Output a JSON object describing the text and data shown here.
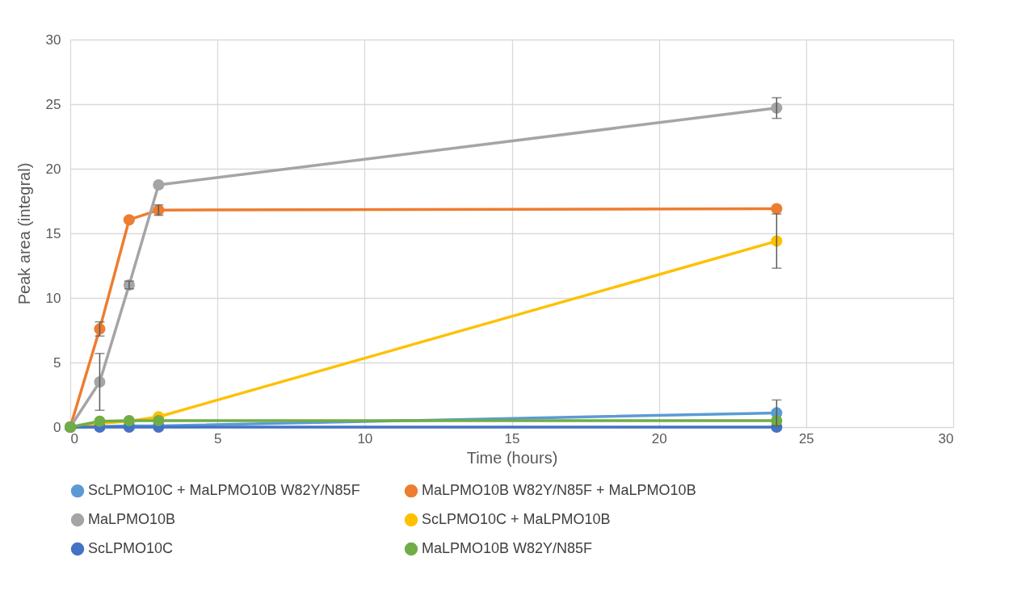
{
  "chart_data": {
    "type": "line",
    "xlabel": "Time (hours)",
    "ylabel": "Peak area (integral)",
    "x": [
      0,
      1,
      2,
      3,
      24
    ],
    "xlim": [
      0,
      30
    ],
    "xticks": [
      0,
      5,
      10,
      15,
      20,
      25,
      30
    ],
    "ylim": [
      0,
      30
    ],
    "yticks": [
      0,
      5,
      10,
      15,
      20,
      25,
      30
    ],
    "grid": true,
    "legend": "bottom",
    "marker": "circle",
    "line_style": "solid",
    "series": [
      {
        "name": "ScLPMO10C + MaLPMO10B W82Y/N85F",
        "color": "#5b9bd5",
        "values": [
          0,
          0.05,
          0.1,
          0.1,
          1.1
        ],
        "errors": [
          null,
          null,
          null,
          null,
          1.0
        ]
      },
      {
        "name": "MaLPMO10B W82Y/N85F + MaLPMO10B",
        "color": "#ed7d31",
        "values": [
          0,
          7.6,
          16.05,
          16.8,
          16.9
        ],
        "errors": [
          null,
          0.55,
          null,
          0.4,
          null
        ]
      },
      {
        "name": "MaLPMO10B",
        "color": "#a5a5a5",
        "values": [
          0,
          3.5,
          11.0,
          18.75,
          24.7
        ],
        "errors": [
          null,
          2.2,
          0.3,
          null,
          0.8
        ]
      },
      {
        "name": "ScLPMO10C + MaLPMO10B",
        "color": "#ffc000",
        "values": [
          0,
          0.3,
          0.45,
          0.8,
          14.4
        ],
        "errors": [
          null,
          null,
          null,
          null,
          2.1
        ]
      },
      {
        "name": "ScLPMO10C",
        "color": "#4472c4",
        "values": [
          0,
          0,
          0,
          0,
          0
        ]
      },
      {
        "name": "MaLPMO10B W82Y/N85F",
        "color": "#70ad47",
        "values": [
          0,
          0.45,
          0.5,
          0.5,
          0.5
        ]
      }
    ]
  }
}
